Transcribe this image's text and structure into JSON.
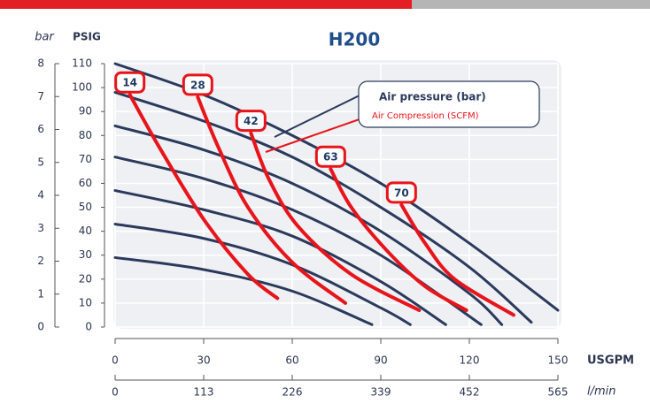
{
  "chart_data": {
    "type": "line",
    "title": "H200",
    "y_label": "PSIG",
    "y2_label": "bar",
    "x_label": "USGPM",
    "x2_label": "l/min",
    "xlim": [
      0,
      150
    ],
    "xticks": [
      0,
      30,
      60,
      90,
      120,
      150
    ],
    "x2lim": [
      0,
      565
    ],
    "x2ticks": [
      0,
      113,
      226,
      339,
      452,
      565
    ],
    "ylim": [
      0,
      110
    ],
    "yticks": [
      0,
      10,
      20,
      30,
      40,
      50,
      60,
      70,
      80,
      90,
      100,
      110
    ],
    "y2lim": [
      0,
      8
    ],
    "y2ticks": [
      0,
      1,
      2,
      3,
      4,
      5,
      6,
      7,
      8
    ],
    "grid": true,
    "groups": [
      {
        "name": "Air pressure (bar)",
        "color": "#2b3a5c",
        "series": [
          {
            "x": [
              0,
              30,
              60,
              90,
              120,
              150
            ],
            "values": [
              110,
              97,
              80,
              60,
              35,
              7
            ]
          },
          {
            "x": [
              0,
              30,
              60,
              90,
              120,
              141
            ],
            "values": [
              98,
              86,
              71,
              50,
              25,
              2
            ]
          },
          {
            "x": [
              0,
              30,
              60,
              90,
              120,
              131
            ],
            "values": [
              84,
              74,
              60,
              40,
              14,
              1
            ]
          },
          {
            "x": [
              0,
              30,
              60,
              90,
              124
            ],
            "values": [
              71,
              62,
              49,
              30,
              1
            ]
          },
          {
            "x": [
              0,
              30,
              60,
              90,
              112
            ],
            "values": [
              57,
              49,
              38,
              19,
              1
            ]
          },
          {
            "x": [
              0,
              30,
              60,
              90,
              100
            ],
            "values": [
              43,
              37,
              26,
              8,
              1
            ]
          },
          {
            "x": [
              0,
              30,
              60,
              87
            ],
            "values": [
              29,
              24,
              15,
              1
            ]
          }
        ]
      },
      {
        "name": "Air Compression (SCFM)",
        "color": "#e8141b",
        "series": [
          {
            "name": "14",
            "x": [
              5,
              15,
              30,
              45,
              55
            ],
            "values": [
              97,
              75,
              45,
              22,
              12
            ]
          },
          {
            "name": "28",
            "x": [
              28,
              35,
              45,
              60,
              78
            ],
            "values": [
              96,
              75,
              50,
              27,
              10
            ]
          },
          {
            "name": "42",
            "x": [
              46,
              52,
              62,
              80,
              103
            ],
            "values": [
              81,
              62,
              42,
              22,
              7
            ]
          },
          {
            "name": "63",
            "x": [
              73,
              80,
              92,
              105,
              119
            ],
            "values": [
              66,
              50,
              32,
              17,
              7
            ]
          },
          {
            "name": "70",
            "x": [
              97,
              105,
              115,
              135
            ],
            "values": [
              51,
              35,
              20,
              5
            ]
          }
        ]
      }
    ]
  }
}
